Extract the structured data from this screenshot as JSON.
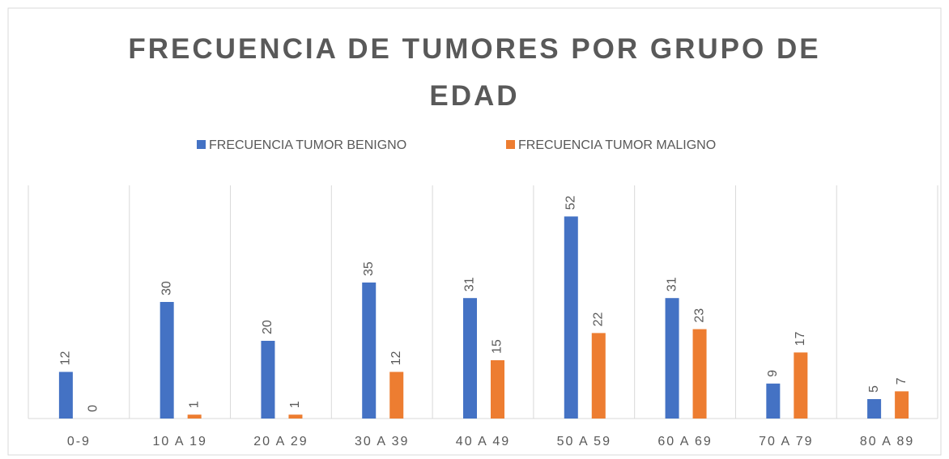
{
  "chart_data": {
    "type": "bar",
    "title": "FRECUENCIA DE TUMORES POR GRUPO DE EDAD",
    "categories": [
      "0-9",
      "10 A 19",
      "20 A 29",
      "30 A 39",
      "40 A 49",
      "50 A 59",
      "60 A 69",
      "70 A 79",
      "80 A 89"
    ],
    "series": [
      {
        "name": "FRECUENCIA TUMOR BENIGNO",
        "color": "#4472c4",
        "values": [
          12,
          30,
          20,
          35,
          31,
          52,
          31,
          9,
          5
        ]
      },
      {
        "name": "FRECUENCIA TUMOR MALIGNO",
        "color": "#ed7d31",
        "values": [
          0,
          1,
          1,
          12,
          15,
          22,
          23,
          17,
          7
        ]
      }
    ],
    "ylim": [
      0,
      60
    ],
    "legend": "top"
  }
}
